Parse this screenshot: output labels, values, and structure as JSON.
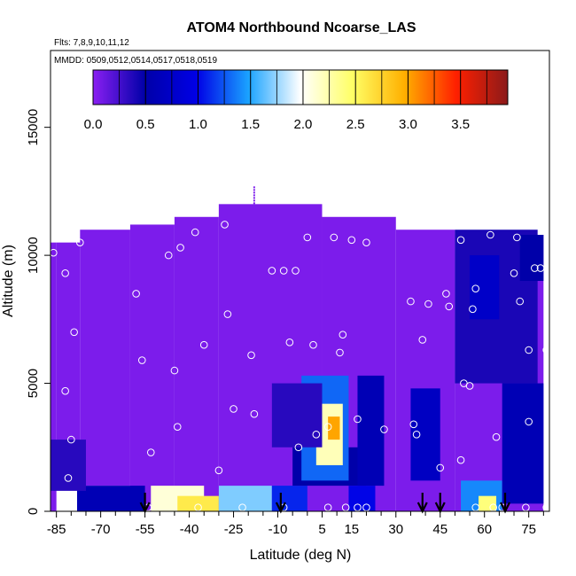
{
  "chart_data": {
    "type": "heatmap",
    "title": "ATOM4 Northbound Ncoarse_LAS",
    "subtitle_flights": "Flts: 7,8,9,10,11,12",
    "subtitle_dates": "MMDD: 0509,0512,0514,0517,0518,0519",
    "xlabel": "Latitude (deg N)",
    "ylabel": "Altitude (m)",
    "xlim": [
      -87,
      82
    ],
    "ylim": [
      0,
      18000
    ],
    "x_ticks": [
      -85,
      -70,
      -55,
      -40,
      -25,
      -10,
      5,
      15,
      30,
      45,
      60,
      75
    ],
    "x_minor_ticks": [
      -80,
      -75,
      -65,
      -60,
      -50,
      -45,
      -35,
      -30,
      -20,
      -15,
      -5,
      0,
      10,
      20,
      25,
      35,
      40,
      50,
      55,
      65,
      70,
      80
    ],
    "y_ticks": [
      0,
      5000,
      10000,
      15000
    ],
    "colorbar": {
      "range": [
        0,
        3.95
      ],
      "ticks": [
        0.0,
        0.5,
        1.0,
        1.5,
        2.0,
        2.5,
        3.0,
        3.5
      ],
      "tick_labels": [
        "0.0",
        "0.5",
        "1.0",
        "1.5",
        "2.0",
        "2.5",
        "3.0",
        "3.5"
      ],
      "stops": [
        "#8a1ff2",
        "#0000a8",
        "#0000e6",
        "#1aa3ff",
        "#ffffff",
        "#ffff66",
        "#ffb000",
        "#ff2000",
        "#8b1a1a"
      ]
    },
    "background_value": 0.05,
    "coverage": [
      {
        "x": [
          -87,
          -85
        ],
        "y": [
          0,
          10500
        ]
      },
      {
        "x": [
          -85,
          -77
        ],
        "y": [
          1000,
          10500
        ]
      },
      {
        "x": [
          -77,
          -60
        ],
        "y": [
          1000,
          11000
        ]
      },
      {
        "x": [
          -60,
          -45
        ],
        "y": [
          600,
          11200
        ]
      },
      {
        "x": [
          -45,
          -30
        ],
        "y": [
          600,
          11500
        ]
      },
      {
        "x": [
          -30,
          5
        ],
        "y": [
          0,
          12000
        ]
      },
      {
        "x": [
          5,
          30
        ],
        "y": [
          0,
          11500
        ]
      },
      {
        "x": [
          30,
          50
        ],
        "y": [
          0,
          11000
        ]
      },
      {
        "x": [
          50,
          80
        ],
        "y": [
          0,
          10800
        ]
      },
      {
        "x": [
          -55,
          20
        ],
        "y": [
          0,
          1000
        ]
      }
    ],
    "anomalies": [
      {
        "x": [
          -78,
          -55
        ],
        "y": [
          0,
          1000
        ],
        "v": 0.6
      },
      {
        "x": [
          -53,
          -35
        ],
        "y": [
          0,
          1000
        ],
        "v": 2.1
      },
      {
        "x": [
          -44,
          -30
        ],
        "y": [
          0,
          600
        ],
        "v": 2.6
      },
      {
        "x": [
          -30,
          -12
        ],
        "y": [
          0,
          1000
        ],
        "v": 1.7
      },
      {
        "x": [
          -12,
          0
        ],
        "y": [
          0,
          1000
        ],
        "v": 1.1
      },
      {
        "x": [
          -5,
          20
        ],
        "y": [
          1000,
          2500
        ],
        "v": 0.5
      },
      {
        "x": [
          -2,
          14
        ],
        "y": [
          1200,
          5300
        ],
        "v": 1.3
      },
      {
        "x": [
          3,
          12
        ],
        "y": [
          1800,
          4200
        ],
        "v": 2.2
      },
      {
        "x": [
          7,
          11
        ],
        "y": [
          2800,
          3700
        ],
        "v": 3.0
      },
      {
        "x": [
          14,
          23
        ],
        "y": [
          0,
          1000
        ],
        "v": 1.0
      },
      {
        "x": [
          17,
          26
        ],
        "y": [
          1000,
          5300
        ],
        "v": 0.6
      },
      {
        "x": [
          35,
          45
        ],
        "y": [
          1200,
          4800
        ],
        "v": 0.7
      },
      {
        "x": [
          52,
          66
        ],
        "y": [
          0,
          1200
        ],
        "v": 1.4
      },
      {
        "x": [
          58,
          64
        ],
        "y": [
          0,
          600
        ],
        "v": 2.4
      },
      {
        "x": [
          66,
          80
        ],
        "y": [
          300,
          5000
        ],
        "v": 0.6
      },
      {
        "x": [
          50,
          78
        ],
        "y": [
          5000,
          11000
        ],
        "v": 0.4
      },
      {
        "x": [
          55,
          65
        ],
        "y": [
          7500,
          10000
        ],
        "v": 0.75
      },
      {
        "x": [
          72,
          80
        ],
        "y": [
          9000,
          10800
        ],
        "v": 0.5
      },
      {
        "x": [
          -87,
          -75
        ],
        "y": [
          800,
          2800
        ],
        "v": 0.35
      },
      {
        "x": [
          -12,
          5
        ],
        "y": [
          2500,
          5000
        ],
        "v": 0.35
      }
    ],
    "sample_points": [
      [
        -86,
        10100
      ],
      [
        -82,
        9300
      ],
      [
        -77,
        10500
      ],
      [
        -79,
        7000
      ],
      [
        -82,
        4700
      ],
      [
        -80,
        2800
      ],
      [
        -81,
        1300
      ],
      [
        -58,
        8500
      ],
      [
        -56,
        5900
      ],
      [
        -53,
        2300
      ],
      [
        -47,
        10000
      ],
      [
        -43,
        10300
      ],
      [
        -45,
        5500
      ],
      [
        -44,
        3300
      ],
      [
        -38,
        10900
      ],
      [
        -35,
        6500
      ],
      [
        -30,
        1600
      ],
      [
        -28,
        11200
      ],
      [
        -27,
        7700
      ],
      [
        -25,
        4000
      ],
      [
        -19,
        6100
      ],
      [
        -18,
        3800
      ],
      [
        -12,
        9400
      ],
      [
        -8,
        9400
      ],
      [
        -6,
        6600
      ],
      [
        -4,
        9400
      ],
      [
        -3,
        2500
      ],
      [
        0,
        10700
      ],
      [
        2,
        6500
      ],
      [
        3,
        3000
      ],
      [
        7,
        3300
      ],
      [
        9,
        10700
      ],
      [
        11,
        6200
      ],
      [
        12,
        6900
      ],
      [
        15,
        10600
      ],
      [
        17,
        3600
      ],
      [
        20,
        10500
      ],
      [
        26,
        3200
      ],
      [
        35,
        8200
      ],
      [
        36,
        3400
      ],
      [
        37,
        3000
      ],
      [
        39,
        6700
      ],
      [
        41,
        8100
      ],
      [
        45,
        1700
      ],
      [
        47,
        8500
      ],
      [
        48,
        8000
      ],
      [
        52,
        10600
      ],
      [
        52,
        2000
      ],
      [
        53,
        5000
      ],
      [
        55,
        4900
      ],
      [
        56,
        7900
      ],
      [
        57,
        8700
      ],
      [
        62,
        10800
      ],
      [
        64,
        2900
      ],
      [
        70,
        9300
      ],
      [
        71,
        10700
      ],
      [
        72,
        8200
      ],
      [
        75,
        3500
      ],
      [
        75,
        6300
      ],
      [
        77,
        9500
      ],
      [
        79,
        9500
      ],
      [
        81,
        6300
      ],
      [
        -54,
        150
      ],
      [
        -37,
        150
      ],
      [
        -22,
        150
      ],
      [
        -8,
        150
      ],
      [
        7,
        150
      ],
      [
        13,
        150
      ],
      [
        17,
        150
      ],
      [
        20,
        150
      ],
      [
        57,
        150
      ],
      [
        63,
        150
      ],
      [
        66,
        150
      ],
      [
        74,
        150
      ],
      [
        81,
        150
      ]
    ],
    "flight_markers": [
      -55,
      -9,
      39,
      45,
      67
    ]
  }
}
